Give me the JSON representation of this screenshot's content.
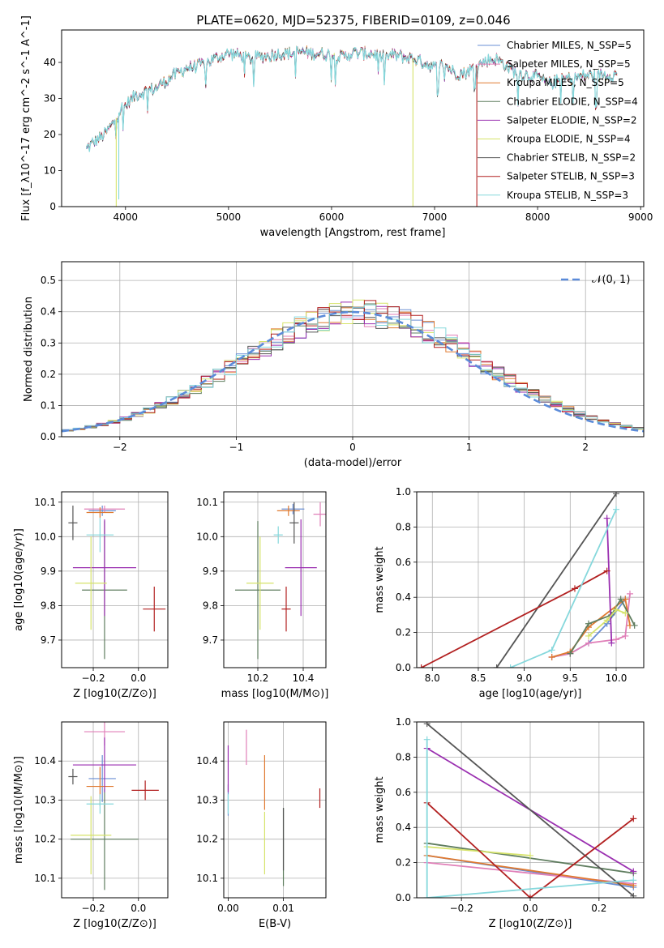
{
  "figure": {
    "title": "PLATE=0620, MJD=52375, FIBERID=0109, z=0.046",
    "colors": {
      "Chabrier MILES": "#6a8fd4",
      "Salpeter MILES": "#e07fb8",
      "Kroupa MILES": "#e07a30",
      "Chabrier ELODIE": "#5f7d5f",
      "Salpeter ELODIE": "#9a2fb0",
      "Kroupa ELODIE": "#d6e36a",
      "Chabrier STELIB": "#555555",
      "Salpeter STELIB": "#b22020",
      "Kroupa STELIB": "#86d8dc"
    }
  },
  "chart_data": [
    {
      "id": "spectrum",
      "type": "line",
      "xlabel": "wavelength [Angstrom, rest frame]",
      "ylabel": "Flux [f_λ10^-17 erg cm^-2 s^-1 A^-1]",
      "xlim": [
        3380,
        9030
      ],
      "ylim": [
        0,
        49
      ],
      "xticks": [
        4000,
        5000,
        6000,
        7000,
        8000,
        9000
      ],
      "yticks": [
        0,
        10,
        20,
        30,
        40
      ],
      "legend": "top-right",
      "legend_labels": [
        "Chabrier MILES, N_SSP=5",
        "Salpeter MILES, N_SSP=5",
        "Kroupa MILES, N_SSP=5",
        "Chabrier ELODIE, N_SSP=4",
        "Salpeter ELODIE, N_SSP=2",
        "Kroupa ELODIE, N_SSP=4",
        "Chabrier STELIB, N_SSP=2",
        "Salpeter STELIB, N_SSP=3",
        "Kroupa STELIB, N_SSP=3"
      ],
      "continuum": {
        "x": [
          3620,
          3700,
          3800,
          3900,
          3950,
          4000,
          4100,
          4200,
          4300,
          4400,
          4500,
          4600,
          4700,
          4800,
          4900,
          5000,
          5100,
          5200,
          5300,
          5400,
          5500,
          5600,
          5700,
          5800,
          5900,
          6000,
          6100,
          6200,
          6300,
          6400,
          6500,
          6600,
          6700,
          6800,
          6900,
          7000,
          7100,
          7200,
          7300,
          7400,
          7500,
          7600,
          7700,
          7800,
          7900,
          8000,
          8100,
          8200,
          8300,
          8400,
          8500,
          8600,
          8700,
          8770
        ],
        "y": [
          16,
          18,
          20,
          24,
          27,
          28,
          31,
          32,
          33,
          35,
          37,
          38.5,
          39,
          40,
          41.5,
          42.5,
          42,
          41,
          41.5,
          42,
          42.5,
          42.5,
          43,
          42.5,
          42.5,
          42,
          41.5,
          42.5,
          42.5,
          42.5,
          41.5,
          42,
          41.5,
          41,
          40,
          38.5,
          39.5,
          37,
          37,
          39,
          40.5,
          41,
          39,
          37,
          36.5,
          36,
          34,
          35,
          35.5,
          36,
          36.5,
          36.5,
          36.5,
          36.5
        ]
      },
      "spectrum_range": [
        3620,
        8770
      ],
      "drops": [
        {
          "series": "Kroupa ELODIE",
          "x": 3910,
          "to": 0
        },
        {
          "series": "Kroupa STELIB",
          "x": 3935,
          "to": 2
        },
        {
          "series": "Kroupa ELODIE",
          "x": 6790,
          "to": 0
        },
        {
          "series": "Salpeter STELIB",
          "x": 7410,
          "to": 0
        }
      ]
    },
    {
      "id": "residuals",
      "type": "histogram",
      "xlabel": "(data-model)/error",
      "ylabel": "Normed distribution",
      "xlim": [
        -2.5,
        2.5
      ],
      "ylim": [
        0,
        0.56
      ],
      "xticks": [
        -2,
        -1,
        0,
        1,
        2
      ],
      "yticks": [
        0.0,
        0.1,
        0.2,
        0.3,
        0.4,
        0.5
      ],
      "bin_width": 0.1,
      "bin_start": -2.5,
      "reference_label": "𝒩(0, 1)",
      "reference_color": "#5b8bd9"
    },
    {
      "id": "age-Z",
      "type": "errorbar",
      "xlabel": "Z [log10(Z/Z⊙)]",
      "ylabel": "age [log10(age/yr)]",
      "xlim": [
        -0.34,
        0.13
      ],
      "ylim": [
        9.62,
        10.13
      ],
      "xticks": [
        -0.2,
        0.0
      ],
      "yticks": [
        9.7,
        9.8,
        9.9,
        10.0,
        10.1
      ],
      "points": [
        {
          "series": "Chabrier MILES",
          "x": -0.16,
          "xerr": 0.06,
          "y": 10.075,
          "yerr": 0.015
        },
        {
          "series": "Salpeter MILES",
          "x": -0.15,
          "xerr": 0.09,
          "y": 10.08,
          "yerr": 0.01
        },
        {
          "series": "Kroupa MILES",
          "x": -0.17,
          "xerr": 0.06,
          "y": 10.07,
          "yerr": 0.015
        },
        {
          "series": "Chabrier ELODIE",
          "x": -0.15,
          "xerr": 0.1,
          "y": 9.845,
          "yerr": 0.2
        },
        {
          "series": "Salpeter ELODIE",
          "x": -0.15,
          "xerr": 0.14,
          "y": 9.91,
          "yerr": 0.14
        },
        {
          "series": "Kroupa ELODIE",
          "x": -0.21,
          "xerr": 0.07,
          "y": 9.865,
          "yerr": 0.135
        },
        {
          "series": "Chabrier STELIB",
          "x": -0.29,
          "xerr": 0.02,
          "y": 10.04,
          "yerr": 0.05
        },
        {
          "series": "Salpeter STELIB",
          "x": 0.07,
          "xerr": 0.05,
          "y": 9.79,
          "yerr": 0.065
        },
        {
          "series": "Kroupa STELIB",
          "x": -0.17,
          "xerr": 0.06,
          "y": 10.005,
          "yerr": 0.05
        }
      ]
    },
    {
      "id": "age-mass",
      "type": "errorbar",
      "xlabel": "mass [log10(M/M⊙)]",
      "ylabel": "",
      "xlim": [
        10.05,
        10.5
      ],
      "ylim": [
        9.62,
        10.13
      ],
      "xticks": [
        10.2,
        10.4
      ],
      "yticks": [
        9.7,
        9.8,
        9.9,
        10.0,
        10.1
      ],
      "points": [
        {
          "series": "Chabrier MILES",
          "x": 10.355,
          "xerr": 0.05,
          "y": 10.08,
          "yerr": 0.015
        },
        {
          "series": "Salpeter MILES",
          "x": 10.475,
          "xerr": 0.03,
          "y": 10.065,
          "yerr": 0.035
        },
        {
          "series": "Kroupa MILES",
          "x": 10.335,
          "xerr": 0.05,
          "y": 10.075,
          "yerr": 0.015
        },
        {
          "series": "Chabrier ELODIE",
          "x": 10.2,
          "xerr": 0.1,
          "y": 9.845,
          "yerr": 0.2
        },
        {
          "series": "Salpeter ELODIE",
          "x": 10.39,
          "xerr": 0.07,
          "y": 9.91,
          "yerr": 0.14
        },
        {
          "series": "Kroupa ELODIE",
          "x": 10.21,
          "xerr": 0.06,
          "y": 9.865,
          "yerr": 0.135
        },
        {
          "series": "Chabrier STELIB",
          "x": 10.36,
          "xerr": 0.02,
          "y": 10.04,
          "yerr": 0.06
        },
        {
          "series": "Salpeter STELIB",
          "x": 10.325,
          "xerr": 0.02,
          "y": 9.79,
          "yerr": 0.065
        },
        {
          "series": "Kroupa STELIB",
          "x": 10.29,
          "xerr": 0.02,
          "y": 10.005,
          "yerr": 0.025
        }
      ]
    },
    {
      "id": "weight-age",
      "type": "line",
      "xlabel": "age [log10(age/yr)]",
      "ylabel": "mass weight",
      "xlim": [
        7.83,
        10.3
      ],
      "ylim": [
        0,
        1
      ],
      "xticks": [
        8.0,
        8.5,
        9.0,
        9.5,
        10.0
      ],
      "yticks": [
        0.0,
        0.2,
        0.4,
        0.6,
        0.8,
        1.0
      ],
      "series": [
        {
          "name": "Chabrier MILES",
          "x": [
            9.3,
            9.5,
            9.7,
            9.9,
            10.1
          ],
          "y": [
            0.06,
            0.08,
            0.14,
            0.25,
            0.39
          ]
        },
        {
          "name": "Salpeter MILES",
          "x": [
            9.3,
            9.5,
            9.7,
            10.0,
            10.1,
            10.15
          ],
          "y": [
            0.06,
            0.08,
            0.14,
            0.16,
            0.18,
            0.42
          ]
        },
        {
          "name": "Kroupa MILES",
          "x": [
            9.3,
            9.5,
            9.7,
            10.1,
            10.15
          ],
          "y": [
            0.06,
            0.09,
            0.23,
            0.39,
            0.24
          ]
        },
        {
          "name": "Chabrier ELODIE",
          "x": [
            9.5,
            9.7,
            9.95,
            10.05,
            10.2
          ],
          "y": [
            0.08,
            0.25,
            0.3,
            0.39,
            0.24
          ]
        },
        {
          "name": "Salpeter ELODIE",
          "x": [
            9.9,
            9.95
          ],
          "y": [
            0.85,
            0.14
          ]
        },
        {
          "name": "Kroupa ELODIE",
          "x": [
            9.7,
            9.9,
            10.0,
            10.1
          ],
          "y": [
            0.18,
            0.27,
            0.33,
            0.31
          ]
        },
        {
          "name": "Chabrier STELIB",
          "x": [
            8.7,
            10.0
          ],
          "y": [
            0.0,
            0.99
          ]
        },
        {
          "name": "Salpeter STELIB",
          "x": [
            7.88,
            9.55,
            9.9
          ],
          "y": [
            0.0,
            0.45,
            0.55
          ]
        },
        {
          "name": "Kroupa STELIB",
          "x": [
            8.85,
            9.3,
            10.0
          ],
          "y": [
            0.0,
            0.1,
            0.9
          ]
        }
      ]
    },
    {
      "id": "mass-Z",
      "type": "errorbar",
      "xlabel": "Z [log10(Z/Z⊙)]",
      "ylabel": "mass [log10(M/M⊙)]",
      "xlim": [
        -0.34,
        0.13
      ],
      "ylim": [
        10.05,
        10.5
      ],
      "xticks": [
        -0.2,
        0.0
      ],
      "yticks": [
        10.1,
        10.2,
        10.3,
        10.4
      ],
      "points": [
        {
          "series": "Chabrier MILES",
          "x": -0.16,
          "xerr": 0.06,
          "y": 10.355,
          "yerr": 0.06
        },
        {
          "series": "Salpeter MILES",
          "x": -0.15,
          "xerr": 0.09,
          "y": 10.475,
          "yerr": 0.035
        },
        {
          "series": "Kroupa MILES",
          "x": -0.17,
          "xerr": 0.06,
          "y": 10.335,
          "yerr": 0.05
        },
        {
          "series": "Chabrier ELODIE",
          "x": -0.15,
          "xerr": 0.15,
          "y": 10.2,
          "yerr": 0.13
        },
        {
          "series": "Salpeter ELODIE",
          "x": -0.15,
          "xerr": 0.14,
          "y": 10.39,
          "yerr": 0.07
        },
        {
          "series": "Kroupa ELODIE",
          "x": -0.21,
          "xerr": 0.09,
          "y": 10.21,
          "yerr": 0.1
        },
        {
          "series": "Chabrier STELIB",
          "x": -0.29,
          "xerr": 0.02,
          "y": 10.36,
          "yerr": 0.02
        },
        {
          "series": "Salpeter STELIB",
          "x": 0.03,
          "xerr": 0.06,
          "y": 10.325,
          "yerr": 0.025
        },
        {
          "series": "Kroupa STELIB",
          "x": -0.17,
          "xerr": 0.06,
          "y": 10.29,
          "yerr": 0.025
        }
      ]
    },
    {
      "id": "mass-EBV",
      "type": "errorbar",
      "xlabel": "E(B-V)",
      "ylabel": "",
      "xlim": [
        -0.0008,
        0.0177
      ],
      "ylim": [
        10.05,
        10.5
      ],
      "xticks": [
        0.0,
        0.01
      ],
      "yticks": [
        10.1,
        10.2,
        10.3,
        10.4
      ],
      "points": [
        {
          "series": "Chabrier MILES",
          "x": 0.0,
          "xerr": 0,
          "y": 10.3,
          "yerr": 0.04
        },
        {
          "series": "Salpeter MILES",
          "x": 0.0033,
          "xerr": 0,
          "y": 10.435,
          "yerr": 0.045
        },
        {
          "series": "Kroupa MILES",
          "x": 0.0066,
          "xerr": 0,
          "y": 10.345,
          "yerr": 0.07
        },
        {
          "series": "Chabrier ELODIE",
          "x": 0.01,
          "xerr": 0,
          "y": 10.18,
          "yerr": 0.1
        },
        {
          "series": "Salpeter ELODIE",
          "x": 0.0,
          "xerr": 0,
          "y": 10.38,
          "yerr": 0.06
        },
        {
          "series": "Kroupa ELODIE",
          "x": 0.0066,
          "xerr": 0,
          "y": 10.19,
          "yerr": 0.08
        },
        {
          "series": "Chabrier STELIB",
          "x": 0.01,
          "xerr": 0,
          "y": 10.2,
          "yerr": 0.08
        },
        {
          "series": "Salpeter STELIB",
          "x": 0.0166,
          "xerr": 0,
          "y": 10.305,
          "yerr": 0.025
        },
        {
          "series": "Kroupa STELIB",
          "x": 0.0,
          "xerr": 0,
          "y": 10.29,
          "yerr": 0.025
        }
      ]
    },
    {
      "id": "weight-Z",
      "type": "line",
      "xlabel": "Z [log10(Z/Z⊙)]",
      "ylabel": "mass weight",
      "xlim": [
        -0.33,
        0.33
      ],
      "ylim": [
        0,
        1
      ],
      "xticks": [
        -0.2,
        0.0,
        0.2
      ],
      "yticks": [
        0.0,
        0.2,
        0.4,
        0.6,
        0.8,
        1.0
      ],
      "series": [
        {
          "name": "Chabrier MILES",
          "x": [
            -0.3,
            0.3
          ],
          "y": [
            0.24,
            0.06
          ]
        },
        {
          "name": "Salpeter MILES",
          "x": [
            -0.3,
            0.3
          ],
          "y": [
            0.2,
            0.08
          ]
        },
        {
          "name": "Kroupa MILES",
          "x": [
            -0.3,
            0.3
          ],
          "y": [
            0.24,
            0.07
          ]
        },
        {
          "name": "Chabrier ELODIE",
          "x": [
            -0.3,
            0.3
          ],
          "y": [
            0.31,
            0.14
          ]
        },
        {
          "name": "Salpeter ELODIE",
          "x": [
            -0.3,
            0.3
          ],
          "y": [
            0.85,
            0.15
          ]
        },
        {
          "name": "Kroupa ELODIE",
          "x": [
            -0.3,
            0.0
          ],
          "y": [
            0.29,
            0.24
          ]
        },
        {
          "name": "Chabrier STELIB",
          "x": [
            -0.3,
            0.3
          ],
          "y": [
            0.99,
            0.01
          ]
        },
        {
          "name": "Salpeter STELIB",
          "x": [
            -0.3,
            0.0,
            0.3
          ],
          "y": [
            0.54,
            0.0,
            0.45
          ]
        },
        {
          "name": "Kroupa STELIB",
          "x": [
            -0.3,
            -0.3,
            0.3
          ],
          "y": [
            0.9,
            0.0,
            0.1
          ]
        }
      ]
    }
  ]
}
